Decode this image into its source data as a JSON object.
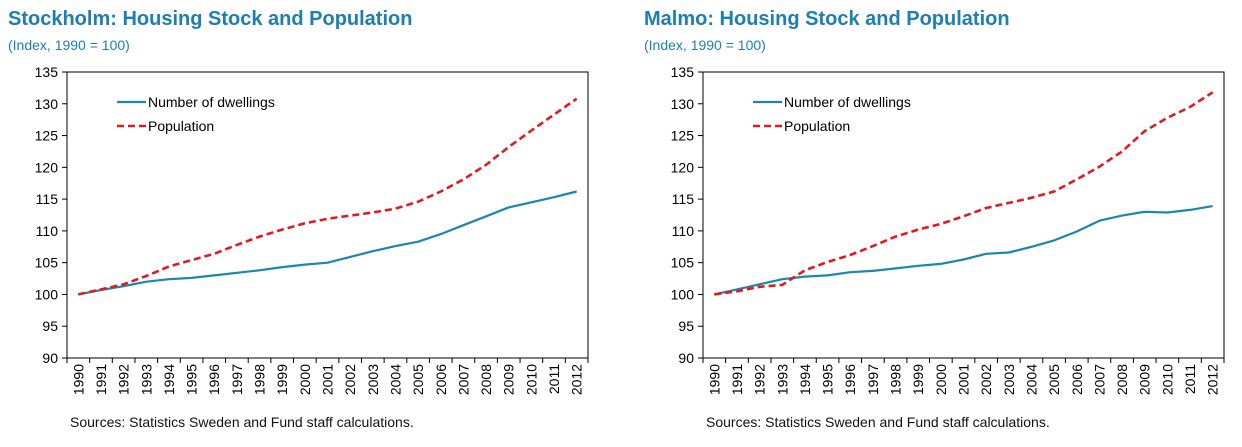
{
  "chart_data": [
    {
      "type": "line",
      "title": "Stockholm: Housing Stock and Population",
      "subtitle": "(Index, 1990 = 100)",
      "x": [
        "1990",
        "1991",
        "1992",
        "1993",
        "1994",
        "1995",
        "1996",
        "1997",
        "1998",
        "1999",
        "2000",
        "2001",
        "2002",
        "2003",
        "2004",
        "2005",
        "2006",
        "2007",
        "2008",
        "2009",
        "2010",
        "2011",
        "2012"
      ],
      "series": [
        {
          "name": "Number of dwellings",
          "color": "#1b86b0",
          "style": "solid",
          "values": [
            100,
            100.7,
            101.3,
            102.0,
            102.4,
            102.6,
            103.0,
            103.4,
            103.8,
            104.3,
            104.7,
            105.0,
            105.9,
            106.8,
            107.6,
            108.3,
            109.5,
            110.9,
            112.3,
            113.7,
            114.5,
            115.3,
            116.2
          ]
        },
        {
          "name": "Population",
          "color": "#e31a1c",
          "style": "dashed",
          "values": [
            100,
            100.8,
            101.6,
            102.9,
            104.4,
            105.4,
            106.4,
            107.8,
            109.1,
            110.2,
            111.2,
            111.9,
            112.4,
            112.9,
            113.5,
            114.6,
            116.2,
            118.1,
            120.4,
            123.2,
            125.8,
            128.3,
            130.8
          ]
        }
      ],
      "ylim": [
        90,
        135
      ],
      "yticks": [
        90,
        95,
        100,
        105,
        110,
        115,
        120,
        125,
        130,
        135
      ],
      "grid": false,
      "legend": "top-left",
      "source": "Sources: Statistics Sweden and Fund staff calculations."
    },
    {
      "type": "line",
      "title": "Malmo: Housing Stock and Population",
      "subtitle": "(Index, 1990 = 100)",
      "x": [
        "1990",
        "1991",
        "1992",
        "1993",
        "1994",
        "1995",
        "1996",
        "1997",
        "1998",
        "1999",
        "2000",
        "2001",
        "2002",
        "2003",
        "2004",
        "2005",
        "2006",
        "2007",
        "2008",
        "2009",
        "2010",
        "2011",
        "2012"
      ],
      "series": [
        {
          "name": "Number of dwellings",
          "color": "#1b86b0",
          "style": "solid",
          "values": [
            100,
            100.8,
            101.6,
            102.4,
            102.8,
            103.0,
            103.5,
            103.7,
            104.1,
            104.5,
            104.8,
            105.5,
            106.4,
            106.6,
            107.5,
            108.5,
            109.9,
            111.6,
            112.4,
            113.0,
            112.9,
            113.3,
            113.9
          ]
        },
        {
          "name": "Population",
          "color": "#e31a1c",
          "style": "dashed",
          "values": [
            100,
            100.5,
            101.2,
            101.5,
            103.8,
            105.1,
            106.2,
            107.6,
            109.1,
            110.2,
            111.1,
            112.3,
            113.6,
            114.4,
            115.2,
            116.2,
            118.1,
            120.1,
            122.5,
            125.7,
            127.8,
            129.5,
            131.8
          ]
        }
      ],
      "ylim": [
        90,
        135
      ],
      "yticks": [
        90,
        95,
        100,
        105,
        110,
        115,
        120,
        125,
        130,
        135
      ],
      "grid": false,
      "legend": "top-left",
      "source": "Sources: Statistics Sweden and Fund staff calculations."
    }
  ]
}
